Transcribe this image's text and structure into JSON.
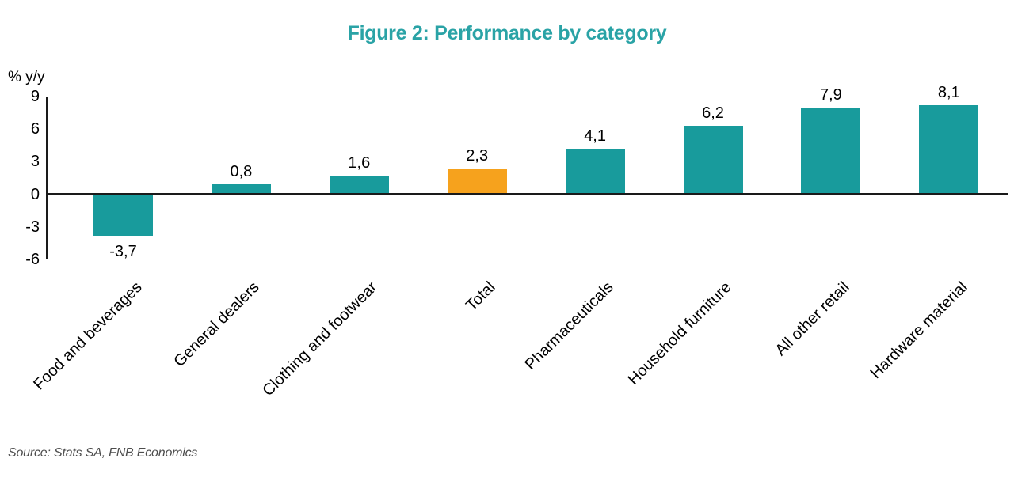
{
  "title": "Figure 2: Performance by category",
  "source": "Source: Stats SA, FNB Economics",
  "colors": {
    "bar_teal": "#189b9c",
    "bar_highlight_orange": "#f6a21d",
    "title_teal": "#2aa3a6",
    "axis_black": "#1a1a1a",
    "source_gray": "#4d4d4d"
  },
  "chart_data": {
    "type": "bar",
    "title": "Figure 2: Performance by category",
    "xlabel": "",
    "ylabel": "% y/y",
    "categories": [
      "Food and beverages",
      "General dealers",
      "Clothing and footwear",
      "Total",
      "Pharmaceuticals",
      "Household furniture",
      "All other retail",
      "Hardware material"
    ],
    "values": [
      -3.7,
      0.8,
      1.6,
      2.3,
      4.1,
      6.2,
      7.9,
      8.1
    ],
    "value_labels": [
      "-3,7",
      "0,8",
      "1,6",
      "2,3",
      "4,1",
      "6,2",
      "7,9",
      "8,1"
    ],
    "highlight_category": "Total",
    "ylim": [
      -6,
      9
    ],
    "yticks": [
      9,
      6,
      3,
      0,
      -3,
      -6
    ],
    "grid": false,
    "legend": false,
    "x_tick_rotation_deg": 45
  }
}
